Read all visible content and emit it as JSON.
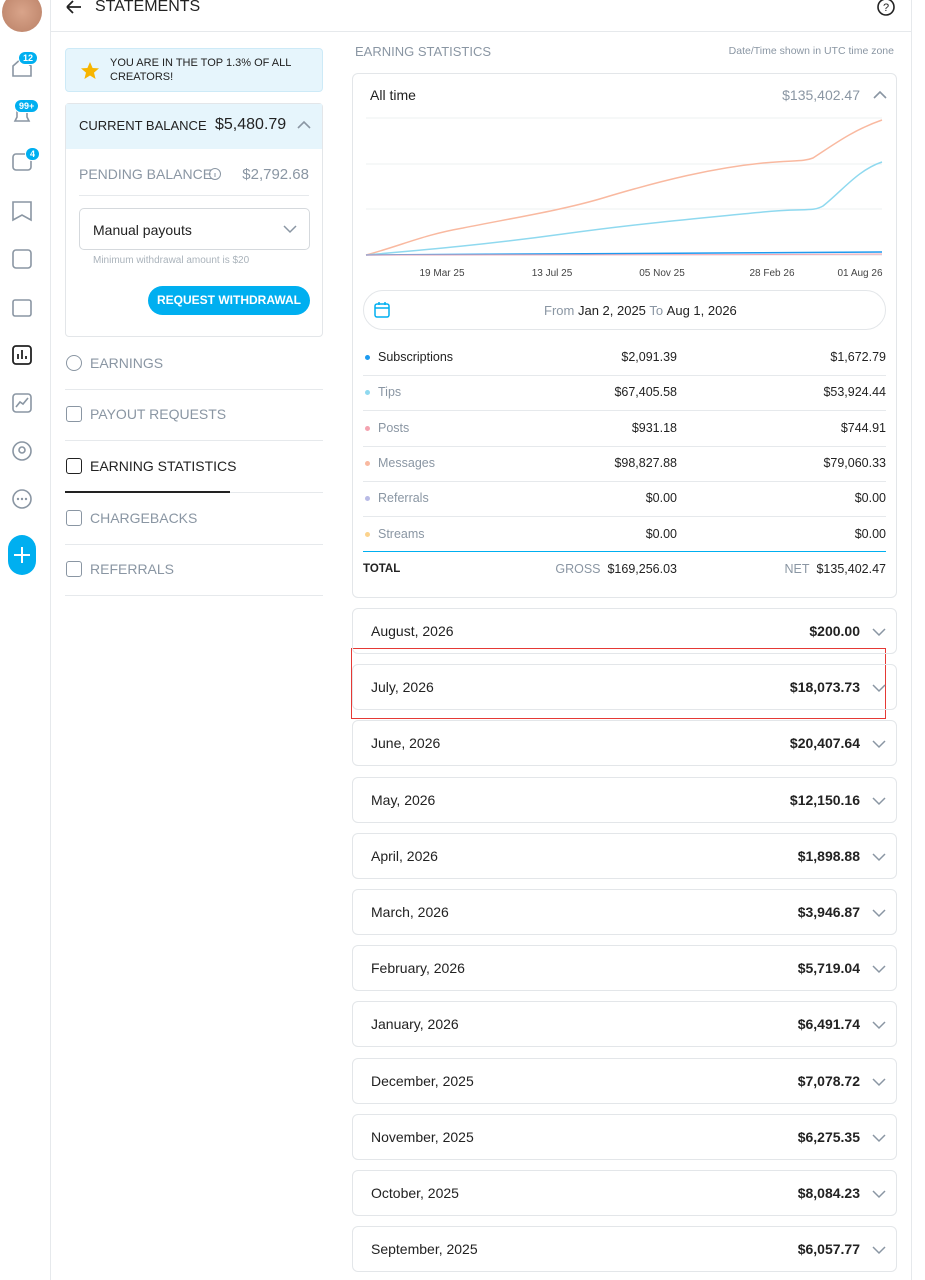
{
  "header": {
    "title": "STATEMENTS"
  },
  "sidebar": {
    "badges": [
      "12",
      "99+",
      "4"
    ]
  },
  "left": {
    "banner": "YOU ARE IN THE TOP 1.3% OF ALL CREATORS!",
    "current_balance_label": "CURRENT BALANCE",
    "current_balance": "$5,480.79",
    "pending_balance_label": "PENDING BALANCE",
    "pending_balance": "$2,792.68",
    "payout_method": "Manual payouts",
    "hint": "Minimum withdrawal amount is $20",
    "button": "REQUEST WITHDRAWAL",
    "nav": [
      "EARNINGS",
      "PAYOUT REQUESTS",
      "EARNING STATISTICS",
      "CHARGEBACKS",
      "REFERRALS"
    ]
  },
  "stats": {
    "title": "EARNING STATISTICS",
    "timezone": "Date/Time shown in UTC time zone",
    "period": "All time",
    "period_total": "$135,402.47",
    "chart": {
      "x_labels": [
        "19 Mar 25",
        "13 Jul 25",
        "05 Nov 25",
        "28 Feb 26",
        "01 Aug 26"
      ]
    },
    "range": {
      "from_label": "From",
      "from": "Jan 2, 2025",
      "to_label": "To",
      "to": "Aug 1, 2026"
    },
    "rows": [
      {
        "name": "Subscriptions",
        "color": "#1d9bf0",
        "gross": "$2,091.39",
        "net": "$1,672.79"
      },
      {
        "name": "Tips",
        "color": "#8fd9ef",
        "gross": "$67,405.58",
        "net": "$53,924.44"
      },
      {
        "name": "Posts",
        "color": "#f4a3b0",
        "gross": "$931.18",
        "net": "$744.91"
      },
      {
        "name": "Messages",
        "color": "#f9b9a0",
        "gross": "$98,827.88",
        "net": "$79,060.33"
      },
      {
        "name": "Referrals",
        "color": "#b9bbe6",
        "gross": "$0.00",
        "net": "$0.00"
      },
      {
        "name": "Streams",
        "color": "#fcd38d",
        "gross": "$0.00",
        "net": "$0.00"
      }
    ],
    "total": {
      "label": "TOTAL",
      "gross_label": "GROSS",
      "gross": "$169,256.03",
      "net_label": "NET",
      "net": "$135,402.47"
    }
  },
  "months": [
    {
      "label": "August, 2026",
      "amount": "$200.00"
    },
    {
      "label": "July, 2026",
      "amount": "$18,073.73"
    },
    {
      "label": "June, 2026",
      "amount": "$20,407.64"
    },
    {
      "label": "May, 2026",
      "amount": "$12,150.16"
    },
    {
      "label": "April, 2026",
      "amount": "$1,898.88"
    },
    {
      "label": "March, 2026",
      "amount": "$3,946.87"
    },
    {
      "label": "February, 2026",
      "amount": "$5,719.04"
    },
    {
      "label": "January, 2026",
      "amount": "$6,491.74"
    },
    {
      "label": "December, 2025",
      "amount": "$7,078.72"
    },
    {
      "label": "November, 2025",
      "amount": "$6,275.35"
    },
    {
      "label": "October, 2025",
      "amount": "$8,084.23"
    },
    {
      "label": "September, 2025",
      "amount": "$6,057.77"
    }
  ]
}
